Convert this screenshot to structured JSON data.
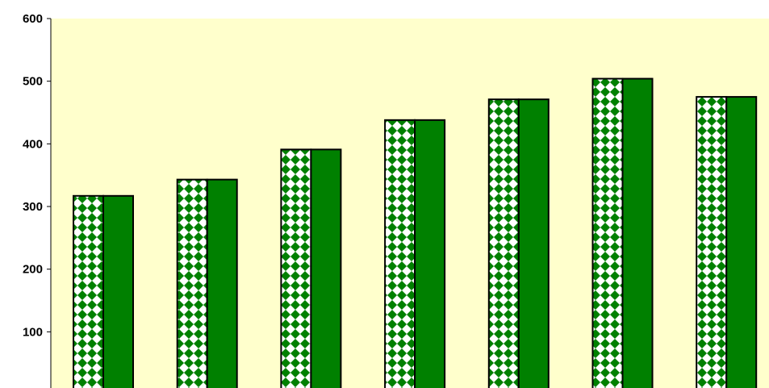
{
  "chart_data": {
    "type": "bar",
    "title": "",
    "xlabel": "",
    "ylabel": "",
    "categories": [
      "",
      "",
      "",
      "",
      "",
      "",
      ""
    ],
    "ylim": [
      0,
      600
    ],
    "yticks": [
      0,
      100,
      200,
      300,
      400,
      500,
      600
    ],
    "series": [
      {
        "values": [
          317,
          343,
          391,
          438,
          471,
          504,
          475
        ],
        "pattern": "checkered-diamond",
        "color": "#008000"
      },
      {
        "values": [
          317,
          343,
          391,
          438,
          471,
          504,
          475
        ],
        "pattern": "solid",
        "color": "#008000"
      }
    ],
    "grid": false,
    "legend": "none",
    "colors": {
      "plot_background": "#ffffcc",
      "bar_green": "#008000",
      "bar_outline": "#000000"
    }
  }
}
